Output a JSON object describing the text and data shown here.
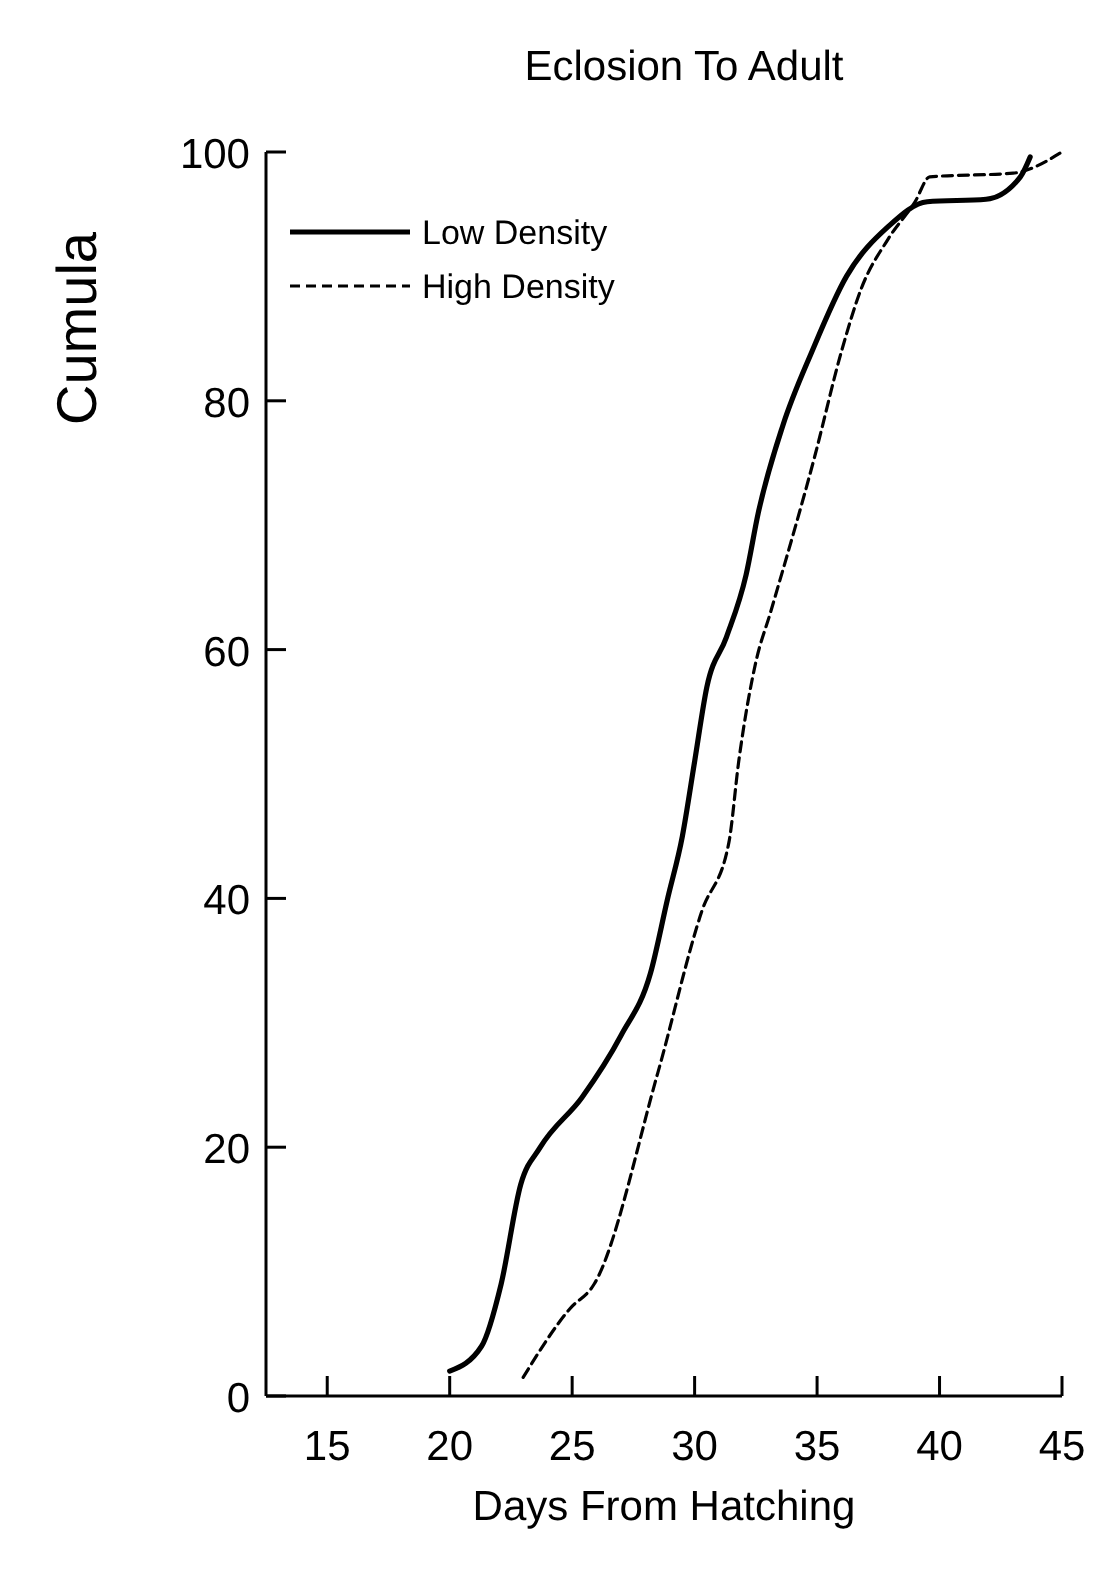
{
  "chart_data": {
    "type": "line",
    "title": "Eclosion To Adult",
    "xlabel": "Days From Hatching",
    "ylabel": "Cumula",
    "xlim": [
      12.5,
      45
    ],
    "xticks": [
      15,
      20,
      25,
      30,
      35,
      40,
      45
    ],
    "ylim": [
      0,
      100
    ],
    "yticks": [
      0,
      20,
      40,
      60,
      80,
      100
    ],
    "grid": false,
    "legend": "top left",
    "marker": "none",
    "series": [
      {
        "name": "Low Density",
        "color": "#000000",
        "line_style": "solid",
        "x": [
          20,
          21.3,
          22.1,
          22.9,
          23.7,
          25.4,
          27,
          28.2,
          28.9,
          29.5,
          30,
          30.5,
          31.3,
          32.1,
          32.6,
          33.6,
          34.8,
          36.2,
          37.9,
          39.5,
          41.9,
          43.3,
          43.7
        ],
        "values": [
          2,
          4,
          9,
          17,
          20,
          24,
          29,
          34,
          40,
          45,
          51,
          57,
          61,
          66,
          71,
          78,
          84,
          90,
          94,
          96,
          96.2,
          98,
          99.6
        ]
      },
      {
        "name": "High Density",
        "color": "#000000",
        "line_style": "dashed",
        "x": [
          23,
          24.9,
          25.9,
          28.5,
          30.3,
          31.4,
          31.8,
          32.5,
          33.1,
          34.9,
          36,
          36.8,
          37.9,
          39,
          39.6,
          43,
          45
        ],
        "values": [
          1.5,
          7,
          9,
          26,
          39,
          44.5,
          51,
          59,
          63,
          75.5,
          84,
          89,
          93,
          96,
          98,
          98.3,
          100
        ]
      }
    ]
  }
}
